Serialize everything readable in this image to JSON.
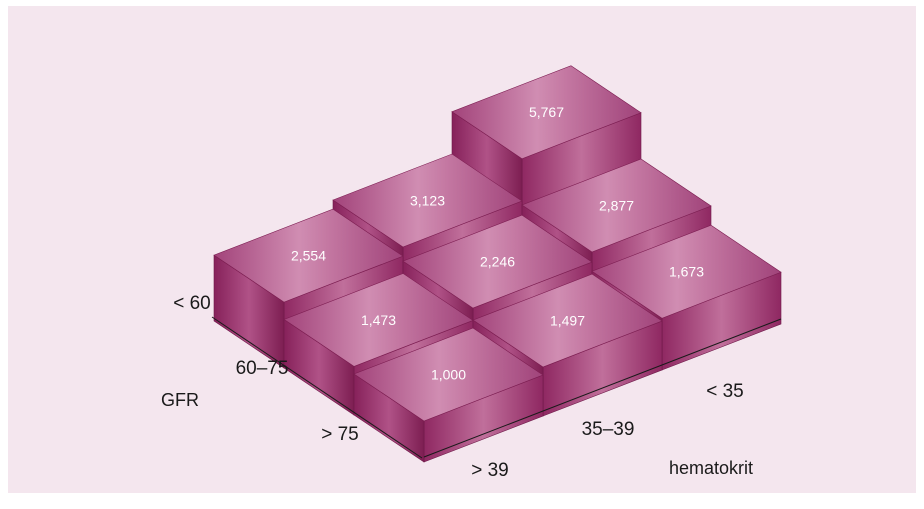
{
  "chart_data": {
    "type": "bar3d",
    "xlabel": "hematokrit",
    "ylabel": "GFR",
    "x_categories": [
      "< 35",
      "35–39",
      "> 39"
    ],
    "y_categories": [
      "< 60",
      "60–75",
      "> 75"
    ],
    "cells": [
      {
        "gfr": "< 60",
        "hematokrit": "< 35",
        "value": 5.767,
        "label": "5,767"
      },
      {
        "gfr": "< 60",
        "hematokrit": "35–39",
        "value": 3.123,
        "label": "3,123"
      },
      {
        "gfr": "< 60",
        "hematokrit": "> 39",
        "value": 2.554,
        "label": "2,554"
      },
      {
        "gfr": "60–75",
        "hematokrit": "< 35",
        "value": 2.877,
        "label": "2,877"
      },
      {
        "gfr": "60–75",
        "hematokrit": "35–39",
        "value": 2.246,
        "label": "2,246"
      },
      {
        "gfr": "60–75",
        "hematokrit": "> 39",
        "value": 1.473,
        "label": "1,473"
      },
      {
        "gfr": "> 75",
        "hematokrit": "< 35",
        "value": 1.673,
        "label": "1,673"
      },
      {
        "gfr": "> 75",
        "hematokrit": "35–39",
        "value": 1.497,
        "label": "1,497"
      },
      {
        "gfr": "> 75",
        "hematokrit": "> 39",
        "value": 1.0,
        "label": "1,000"
      }
    ],
    "colors": {
      "top": "#b35688",
      "front": "#9a2f6a",
      "side": "#7d1e52",
      "background": "#f4e6ee"
    }
  }
}
